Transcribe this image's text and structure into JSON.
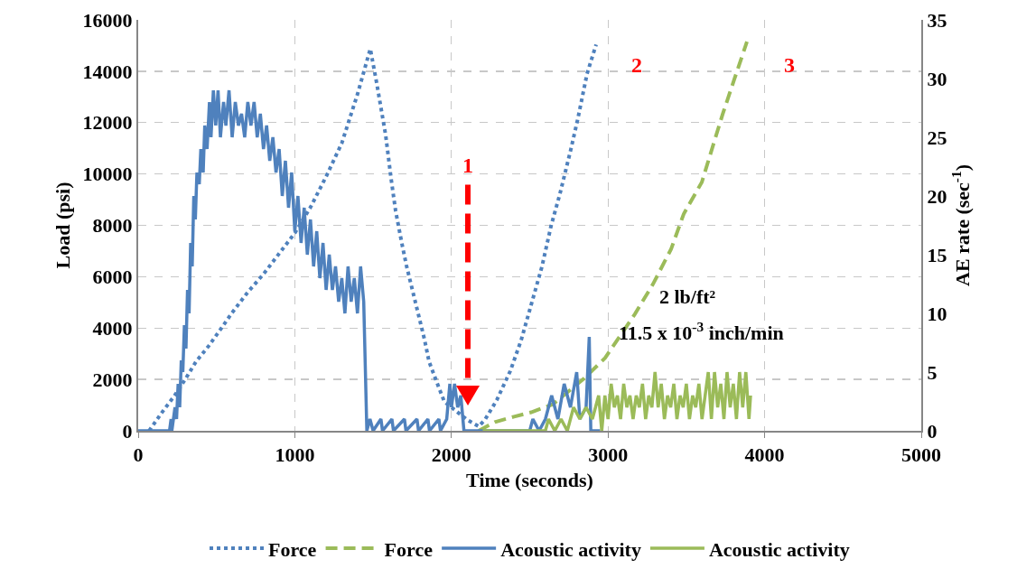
{
  "chart_data": {
    "type": "line",
    "xlabel": "Time (seconds)",
    "ylabel": "Load (psi)",
    "y2label": "AE rate (sec$^{-1}$)",
    "xlim": [
      0,
      5000
    ],
    "xticks": [
      0,
      1000,
      2000,
      3000,
      4000,
      5000
    ],
    "ylim": [
      0,
      16000
    ],
    "yticks": [
      0,
      2000,
      4000,
      6000,
      8000,
      10000,
      12000,
      14000,
      16000
    ],
    "y2lim": [
      0,
      35
    ],
    "y2ticks": [
      0,
      5,
      10,
      15,
      20,
      25,
      30,
      35
    ],
    "grid": true,
    "legend": "bottom",
    "marker": "none",
    "series": [
      {
        "name": "Force",
        "color": "#4f81bd",
        "line_style": "dotted",
        "x": [
          70,
          150,
          230,
          300,
          370,
          450,
          520,
          600,
          700,
          800,
          900,
          1000,
          1100,
          1200,
          1300,
          1400,
          1482,
          1522,
          1580,
          1615,
          1644,
          1684,
          1713,
          1828,
          1857,
          1903,
          1955,
          2105,
          2174,
          2215,
          2290,
          2347,
          2376,
          2445,
          2578,
          2636,
          2693,
          2762,
          2809,
          2866,
          2924
        ],
        "values": [
          0,
          700,
          1350,
          2000,
          2700,
          3300,
          3900,
          4600,
          5400,
          6100,
          6900,
          7700,
          8700,
          9900,
          11200,
          13100,
          14870,
          13570,
          11520,
          9810,
          8550,
          7280,
          6430,
          3560,
          2700,
          1950,
          1130,
          410,
          170,
          440,
          1200,
          1950,
          2330,
          3520,
          6390,
          7970,
          9230,
          10940,
          12200,
          13900,
          15040
        ]
      },
      {
        "name": "Force",
        "color": "#9bbb59",
        "line_style": "dashed",
        "x": [
          2174,
          2278,
          2400,
          2509,
          2647,
          2849,
          2982,
          3172,
          3287,
          3403,
          3483,
          3599,
          3674,
          3731,
          3806,
          3887
        ],
        "values": [
          0,
          340,
          550,
          720,
          1030,
          2050,
          2840,
          4550,
          5710,
          7080,
          8440,
          9680,
          11180,
          12310,
          13680,
          15150
        ]
      },
      {
        "name": "Acoustic activity",
        "color": "#4f81bd",
        "line_style": "solid",
        "axis": "y2",
        "x": [
          0,
          200,
          210,
          215,
          225,
          235,
          245,
          255,
          265,
          275,
          285,
          295,
          305,
          315,
          325,
          335,
          345,
          355,
          365,
          375,
          390,
          400,
          415,
          425,
          440,
          455,
          465,
          480,
          495,
          510,
          525,
          545,
          560,
          580,
          600,
          620,
          640,
          660,
          680,
          700,
          720,
          740,
          760,
          780,
          800,
          820,
          840,
          860,
          880,
          900,
          920,
          940,
          960,
          980,
          1000,
          1020,
          1040,
          1060,
          1080,
          1100,
          1120,
          1140,
          1160,
          1180,
          1200,
          1220,
          1240,
          1260,
          1280,
          1300,
          1320,
          1340,
          1360,
          1380,
          1400,
          1420,
          1440,
          1460,
          1480,
          1500,
          1550,
          1560,
          1620,
          1630,
          1700,
          1710,
          1780,
          1790,
          1850,
          1860,
          1920,
          1930,
          1970,
          1990,
          2000,
          2020,
          2040,
          2060,
          2080,
          2500,
          2520,
          2560,
          2600,
          2640,
          2680,
          2720,
          2760,
          2800,
          2820,
          2860,
          2880,
          2890,
          2950
        ],
        "values": [
          0,
          0,
          1,
          0,
          1,
          2,
          1,
          4,
          2,
          6,
          5,
          9,
          7,
          12,
          10,
          16,
          14,
          20,
          18,
          22,
          21,
          24,
          22,
          26,
          24,
          28,
          25,
          29,
          26,
          29,
          25,
          28,
          26,
          29,
          25,
          28,
          26,
          27,
          25,
          28,
          26,
          28,
          25,
          27,
          24,
          26,
          23,
          25,
          22,
          24,
          20,
          23,
          19,
          22,
          17,
          20,
          16,
          19,
          15,
          18,
          14,
          17,
          13,
          16,
          12,
          15,
          12,
          14,
          11,
          13,
          10,
          14,
          11,
          13,
          10,
          14,
          11,
          0,
          1,
          0,
          1,
          0,
          1,
          0,
          1,
          0,
          1,
          0,
          1,
          0,
          1,
          0,
          1,
          4,
          2,
          4,
          2,
          3,
          0,
          0,
          1,
          0,
          1,
          3,
          1,
          4,
          2,
          5,
          1,
          2,
          8,
          0,
          0
        ]
      },
      {
        "name": "Acoustic activity",
        "color": "#9bbb59",
        "line_style": "solid",
        "axis": "y2",
        "x": [
          2200,
          2600,
          2620,
          2660,
          2700,
          2740,
          2780,
          2820,
          2860,
          2900,
          2940,
          2960,
          2980,
          3000,
          3020,
          3040,
          3060,
          3080,
          3100,
          3120,
          3140,
          3160,
          3180,
          3200,
          3220,
          3240,
          3260,
          3280,
          3300,
          3320,
          3340,
          3360,
          3380,
          3400,
          3420,
          3440,
          3460,
          3480,
          3500,
          3520,
          3540,
          3560,
          3580,
          3600,
          3620,
          3640,
          3660,
          3680,
          3700,
          3720,
          3740,
          3760,
          3780,
          3800,
          3820,
          3840,
          3860,
          3880,
          3900,
          3910
        ],
        "values": [
          0,
          0,
          1,
          0,
          1,
          0,
          2,
          1,
          2,
          1,
          3,
          0,
          3,
          1,
          4,
          2,
          3,
          1,
          4,
          2,
          3,
          1,
          3,
          2,
          4,
          1,
          3,
          2,
          5,
          2,
          4,
          1,
          3,
          2,
          4,
          1,
          3,
          2,
          4,
          1,
          3,
          2,
          4,
          1,
          3,
          5,
          1,
          5,
          2,
          4,
          1,
          5,
          2,
          4,
          1,
          5,
          2,
          5,
          1,
          3
        ]
      }
    ],
    "annotations": [
      "1",
      "2",
      "3",
      "2 lb/ft²",
      "11.5 x 10$^{-3}$ inch/min"
    ]
  }
}
